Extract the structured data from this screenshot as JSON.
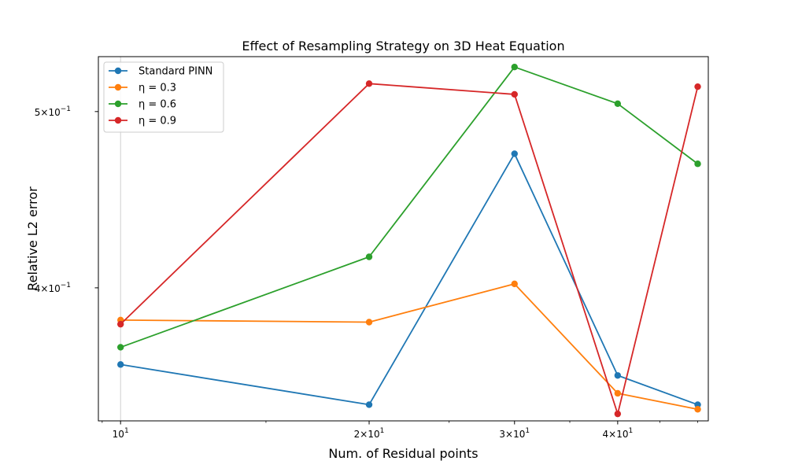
{
  "chart_data": {
    "type": "line",
    "title": "Effect of Resampling Strategy on 3D Heat Equation",
    "xlabel": "Num. of Residual points",
    "ylabel": "Relative L2 error",
    "xscale": "log",
    "yscale": "log",
    "xlim": [
      9.4,
      51.5
    ],
    "ylim": [
      0.338,
      0.536
    ],
    "x": [
      10,
      20,
      30,
      40,
      50
    ],
    "x_ticks": [
      {
        "value": 10,
        "base": "10",
        "exp": "1"
      },
      {
        "value": 20,
        "base": "2×10",
        "exp": "1"
      },
      {
        "value": 30,
        "base": "3×10",
        "exp": "1"
      },
      {
        "value": 40,
        "base": "4×10",
        "exp": "1"
      }
    ],
    "y_ticks": [
      {
        "value": 0.4,
        "base": "4×10",
        "exp": "−1"
      },
      {
        "value": 0.5,
        "base": "5×10",
        "exp": "−1"
      }
    ],
    "grid": "x=10 only",
    "legend_position": "upper-left",
    "series": [
      {
        "name": "Standard PINN",
        "color": "#1f77b4",
        "values": [
          0.363,
          0.345,
          0.474,
          0.358,
          0.345
        ]
      },
      {
        "name": "η = 0.3",
        "color": "#ff7f0e",
        "values": [
          0.384,
          0.383,
          0.402,
          0.35,
          0.343
        ]
      },
      {
        "name": "η = 0.6",
        "color": "#2ca02c",
        "values": [
          0.371,
          0.416,
          0.529,
          0.505,
          0.468
        ]
      },
      {
        "name": "η = 0.9",
        "color": "#d62728",
        "values": [
          0.382,
          0.518,
          0.511,
          0.341,
          0.516
        ]
      }
    ]
  }
}
